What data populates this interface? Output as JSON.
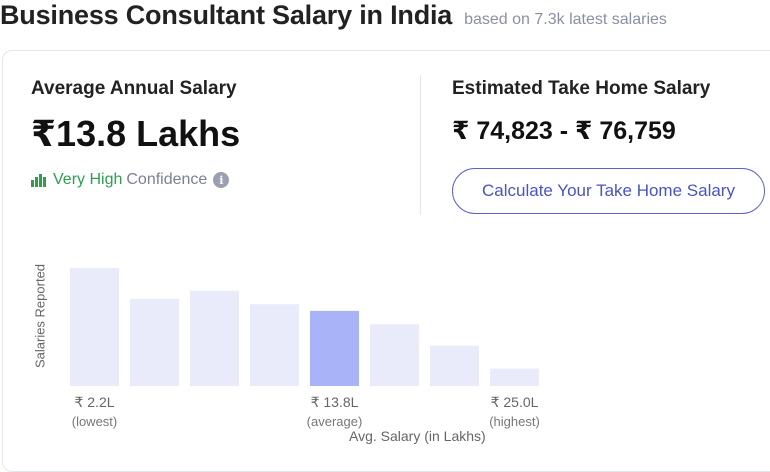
{
  "header": {
    "title": "Business Consultant Salary in India",
    "subtitle": "based on 7.3k latest salaries"
  },
  "average": {
    "label": "Average Annual Salary",
    "value": "₹13.8 Lakhs",
    "confidence_level": "Very High",
    "confidence_word": "Confidence",
    "confidence_icon": "bar-chart-icon",
    "info_icon": "info-icon",
    "confidence_color": "#2e9e4f"
  },
  "take_home": {
    "label": "Estimated Take Home Salary",
    "value": "₹ 74,823 - ₹ 76,759",
    "button_label": "Calculate Your Take Home Salary"
  },
  "chart_data": {
    "type": "bar",
    "ylabel": "Salaries Reported",
    "xlabel": "Avg. Salary (in Lakhs)",
    "values": [
      88,
      65,
      71,
      61,
      56,
      46,
      30,
      13
    ],
    "highlight_index": 4,
    "bar_color": "#e9ebfb",
    "highlight_color": "#a9b3f7",
    "tick_labels": [
      {
        "index": 0,
        "value": "₹ 2.2L",
        "note": "(lowest)"
      },
      {
        "index": 4,
        "value": "₹ 13.8L",
        "note": "(average)"
      },
      {
        "index": 7,
        "value": "₹ 25.0L",
        "note": "(highest)"
      }
    ]
  }
}
